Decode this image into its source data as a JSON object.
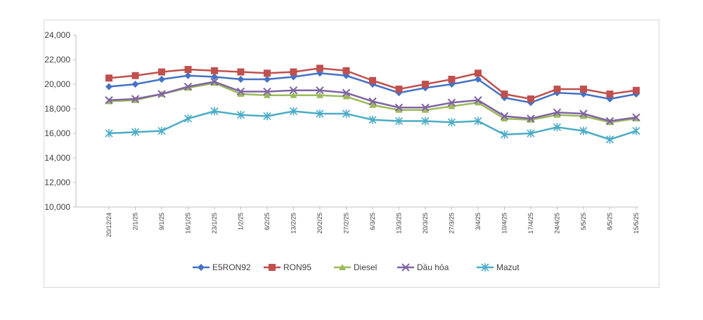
{
  "chart_data": {
    "type": "line",
    "categories": [
      "20/12/24",
      "2/1/25",
      "9/1/25",
      "16/1/25",
      "23/1/25",
      "1/2/25",
      "6/2/25",
      "13/2/25",
      "20/2/25",
      "27/2/25",
      "6/3/25",
      "13/3/25",
      "20/3/25",
      "27/3/25",
      "3/4/25",
      "10/4/25",
      "17/4/25",
      "24/4/25",
      "5/5/25",
      "8/5/25",
      "15/5/25"
    ],
    "y_tick_labels": [
      "10,000",
      "12,000",
      "14,000",
      "16,000",
      "18,000",
      "20,000",
      "22,000",
      "24,000"
    ],
    "ylim": [
      10000,
      24000
    ],
    "y_tick_step": 2000,
    "grid": false,
    "legend_position": "bottom",
    "series": [
      {
        "name": "E5RON92",
        "color": "#4472c4",
        "marker": "diamond",
        "values": [
          19800,
          20000,
          20400,
          20700,
          20600,
          20400,
          20400,
          20600,
          20900,
          20700,
          20000,
          19300,
          19700,
          20000,
          20400,
          18900,
          18500,
          19300,
          19200,
          18800,
          19200
        ]
      },
      {
        "name": "RON95",
        "color": "#c0504d",
        "marker": "square",
        "values": [
          20500,
          20700,
          21000,
          21200,
          21100,
          21000,
          20900,
          21000,
          21300,
          21100,
          20300,
          19600,
          20000,
          20400,
          20900,
          19200,
          18800,
          19600,
          19600,
          19200,
          19500
        ]
      },
      {
        "name": "Diesel",
        "color": "#9bbb59",
        "marker": "triangle",
        "values": [
          18600,
          18700,
          19200,
          19700,
          20100,
          19200,
          19100,
          19100,
          19100,
          19000,
          18300,
          17900,
          17900,
          18200,
          18500,
          17200,
          17100,
          17500,
          17400,
          16900,
          17200
        ]
      },
      {
        "name": "Dầu hỏa",
        "color": "#8064a2",
        "marker": "x",
        "values": [
          18700,
          18800,
          19200,
          19800,
          20200,
          19400,
          19400,
          19500,
          19500,
          19300,
          18600,
          18100,
          18100,
          18500,
          18700,
          17400,
          17200,
          17700,
          17600,
          17000,
          17300
        ]
      },
      {
        "name": "Mazut",
        "color": "#4bacc6",
        "marker": "star",
        "values": [
          16000,
          16100,
          16200,
          17200,
          17800,
          17500,
          17400,
          17800,
          17600,
          17600,
          17100,
          17000,
          17000,
          16900,
          17000,
          15900,
          16000,
          16500,
          16200,
          15500,
          16200
        ]
      }
    ]
  }
}
